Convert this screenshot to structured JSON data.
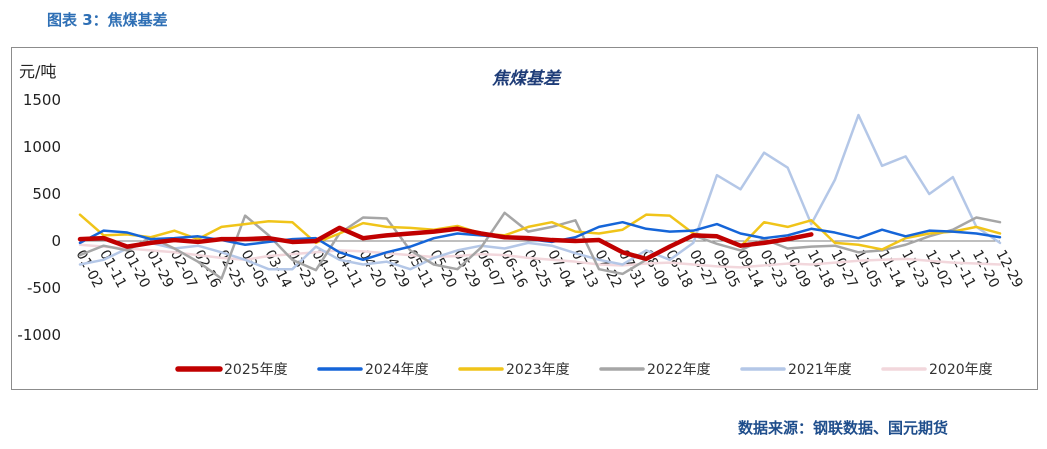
{
  "figure_label": "图表 3：焦煤基差",
  "source": "数据来源：钢联数据、国元期货",
  "chart_data": {
    "type": "line",
    "title": "焦煤基差",
    "ylabel": "元/吨",
    "xlabel": "",
    "ylim": [
      -1000,
      1500
    ],
    "yticks": [
      1500,
      1000,
      500,
      0,
      -500,
      -1000
    ],
    "x_ticks": [
      "01-02",
      "01-11",
      "01-20",
      "01-29",
      "02-07",
      "02-16",
      "02-25",
      "03-05",
      "03-14",
      "03-23",
      "04-01",
      "04-11",
      "04-20",
      "04-29",
      "05-11",
      "05-20",
      "05-29",
      "06-07",
      "06-16",
      "06-25",
      "07-04",
      "07-13",
      "07-22",
      "07-31",
      "08-09",
      "08-18",
      "08-27",
      "09-05",
      "09-14",
      "09-23",
      "10-09",
      "10-18",
      "10-27",
      "11-05",
      "11-14",
      "11-23",
      "12-02",
      "12-11",
      "12-20",
      "12-29"
    ],
    "grid": false,
    "legend_position": "bottom",
    "series": [
      {
        "name": "2025年度",
        "color": "#c00000",
        "width": 4.5,
        "x": [
          0,
          1,
          2,
          3,
          4,
          5,
          6,
          7,
          8,
          9,
          10,
          11,
          12,
          13,
          14,
          15,
          16,
          17,
          18,
          19,
          20,
          21,
          22,
          23,
          24,
          25,
          26,
          27,
          28,
          29,
          30,
          31
        ],
        "values": [
          20,
          30,
          -60,
          -20,
          10,
          -10,
          20,
          20,
          30,
          -10,
          0,
          140,
          30,
          60,
          80,
          100,
          130,
          80,
          40,
          30,
          10,
          0,
          10,
          -120,
          -190,
          -60,
          60,
          50,
          -50,
          -20,
          20,
          70
        ]
      },
      {
        "name": "2024年度",
        "color": "#1565d8",
        "width": 2.5,
        "x": [
          0,
          1,
          2,
          3,
          4,
          5,
          6,
          7,
          8,
          9,
          10,
          11,
          12,
          13,
          14,
          15,
          16,
          17,
          18,
          19,
          20,
          21,
          22,
          23,
          24,
          25,
          26,
          27,
          28,
          29,
          30,
          31,
          32,
          33,
          34,
          35,
          36,
          37,
          38,
          39
        ],
        "values": [
          -20,
          110,
          90,
          20,
          30,
          50,
          10,
          -40,
          -10,
          20,
          30,
          -120,
          -200,
          -120,
          -60,
          30,
          80,
          60,
          40,
          20,
          -10,
          40,
          150,
          200,
          130,
          100,
          110,
          180,
          80,
          30,
          60,
          130,
          90,
          30,
          120,
          50,
          110,
          100,
          80,
          40
        ]
      },
      {
        "name": "2023年度",
        "color": "#f0c419",
        "width": 2.5,
        "x": [
          0,
          1,
          2,
          3,
          4,
          5,
          6,
          7,
          8,
          9,
          10,
          11,
          12,
          13,
          14,
          15,
          16,
          17,
          18,
          19,
          20,
          21,
          22,
          23,
          24,
          25,
          26,
          27,
          28,
          29,
          30,
          31,
          32,
          33,
          34,
          35,
          36,
          37,
          38,
          39
        ],
        "values": [
          280,
          60,
          70,
          40,
          110,
          20,
          150,
          180,
          210,
          200,
          -20,
          80,
          190,
          150,
          140,
          120,
          160,
          80,
          60,
          150,
          200,
          100,
          80,
          120,
          280,
          270,
          80,
          40,
          -60,
          200,
          150,
          220,
          -20,
          -40,
          -90,
          30,
          80,
          100,
          150,
          80
        ]
      },
      {
        "name": "2022年度",
        "color": "#a6a6a6",
        "width": 2.5,
        "x": [
          0,
          1,
          2,
          3,
          4,
          5,
          6,
          7,
          8,
          9,
          10,
          11,
          12,
          13,
          14,
          15,
          16,
          17,
          18,
          19,
          20,
          21,
          22,
          23,
          24,
          25,
          26,
          27,
          28,
          29,
          30,
          31,
          32,
          33,
          34,
          35,
          36,
          37,
          38,
          39
        ],
        "values": [
          -150,
          -50,
          -100,
          40,
          -80,
          -220,
          -400,
          270,
          60,
          -200,
          -310,
          80,
          250,
          240,
          -100,
          -250,
          -300,
          -70,
          300,
          100,
          150,
          220,
          -300,
          -350,
          -200,
          -50,
          60,
          -30,
          -100,
          20,
          -80,
          -60,
          -50,
          -120,
          -100,
          -40,
          50,
          120,
          250,
          200
        ]
      },
      {
        "name": "2021年度",
        "color": "#b4c7e7",
        "width": 2.5,
        "x": [
          0,
          1,
          2,
          3,
          4,
          5,
          6,
          7,
          8,
          9,
          10,
          11,
          12,
          13,
          14,
          15,
          16,
          17,
          18,
          19,
          20,
          21,
          22,
          23,
          24,
          25,
          26,
          27,
          28,
          29,
          30,
          31,
          32,
          33,
          34,
          35,
          36,
          37,
          38,
          39
        ],
        "values": [
          -250,
          -200,
          -80,
          -20,
          -80,
          -50,
          -120,
          -200,
          -300,
          -300,
          -60,
          -200,
          -250,
          -220,
          -300,
          -180,
          -100,
          -50,
          -80,
          -20,
          -50,
          -130,
          -200,
          -250,
          -100,
          -200,
          -20,
          700,
          550,
          940,
          780,
          180,
          650,
          1340,
          800,
          900,
          500,
          680,
          150,
          -20
        ]
      },
      {
        "name": "2020年度",
        "color": "#f2d7dc",
        "width": 2.5,
        "x": [
          0,
          1,
          2,
          3,
          4,
          5,
          6,
          7,
          8,
          9,
          10,
          11,
          12,
          13,
          14,
          15,
          16,
          17,
          18,
          19,
          20,
          21,
          22,
          23,
          24,
          25,
          26,
          27,
          28,
          29,
          30,
          31,
          32,
          33,
          34,
          35,
          36,
          37,
          38,
          39
        ],
        "values": [
          -40,
          -60,
          -80,
          -100,
          -120,
          -150,
          -180,
          -200,
          -160,
          -140,
          -120,
          -100,
          -110,
          -130,
          -150,
          -170,
          -160,
          -140,
          -150,
          -180,
          -200,
          -220,
          -250,
          -260,
          -240,
          -230,
          -250,
          -270,
          -280,
          -260,
          -240,
          -250,
          -230,
          -210,
          -200,
          -190,
          -210,
          -230,
          -240,
          -250
        ]
      }
    ]
  }
}
